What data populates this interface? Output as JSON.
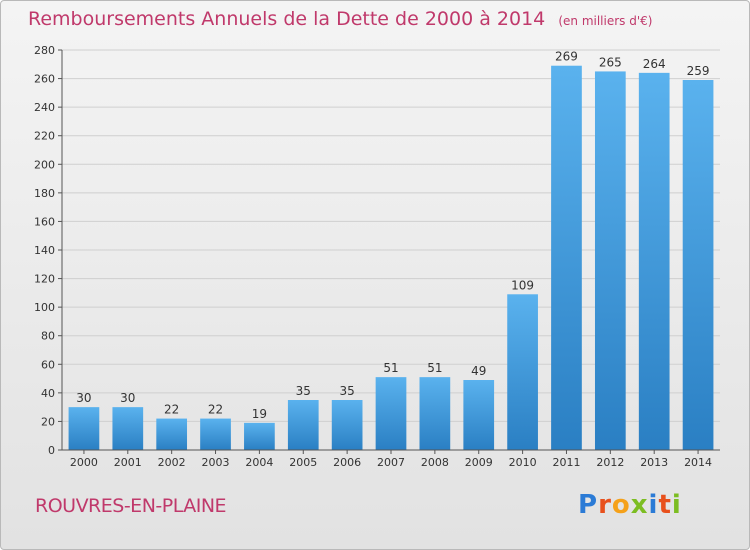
{
  "header": {
    "title": "Remboursements Annuels de la Dette de 2000 à 2014",
    "unit": "(en milliers d'€)"
  },
  "footer": {
    "commune": "ROUVRES-EN-PLAINE",
    "logo_text": "Proxiti"
  },
  "colors": {
    "title": "#c0396b",
    "bar_light": "#5ab2ee",
    "bar_dark": "#2a7fc3",
    "logo": [
      "#2b7bd6",
      "#e8501c",
      "#f5a11a",
      "#7cbd22",
      "#2b7bd6",
      "#e8501c",
      "#7cbd22"
    ]
  },
  "chart_data": {
    "type": "bar",
    "categories": [
      "2000",
      "2001",
      "2002",
      "2003",
      "2004",
      "2005",
      "2006",
      "2007",
      "2008",
      "2009",
      "2010",
      "2011",
      "2012",
      "2013",
      "2014"
    ],
    "values": [
      30,
      30,
      22,
      22,
      19,
      35,
      35,
      51,
      51,
      49,
      109,
      269,
      265,
      264,
      259
    ],
    "title": "Remboursements Annuels de la Dette de 2000 à 2014",
    "xlabel": "",
    "ylabel": "",
    "ylim": [
      0,
      280
    ],
    "yticks": [
      0,
      20,
      40,
      60,
      80,
      100,
      120,
      140,
      160,
      180,
      200,
      220,
      240,
      260,
      280
    ],
    "grid": true,
    "legend": "none"
  }
}
